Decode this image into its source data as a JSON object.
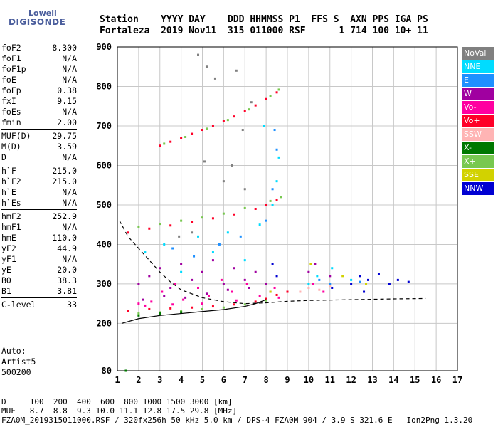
{
  "logo": {
    "line1": "Lowell",
    "line2": "DIGISONDE"
  },
  "header": {
    "line1": "Station    YYYY DAY    DDD HHMMSS P1  FFS S  AXN PPS IGA PS",
    "line2": "Fortaleza  2019 Nov11  315 011000 RSF      1 714 100 10+ 11"
  },
  "params": [
    {
      "name": "foF2",
      "value": "8.300"
    },
    {
      "name": "foF1",
      "value": "N/A"
    },
    {
      "name": "foF1p",
      "value": "N/A"
    },
    {
      "name": "foE",
      "value": "N/A"
    },
    {
      "name": "foEp",
      "value": "0.38"
    },
    {
      "name": "fxI",
      "value": "9.15"
    },
    {
      "name": "foEs",
      "value": "N/A"
    },
    {
      "name": "fmin",
      "value": "2.00"
    },
    {
      "sep": true
    },
    {
      "name": "MUF(D)",
      "value": "29.75"
    },
    {
      "name": "M(D)",
      "value": "3.59"
    },
    {
      "name": "D",
      "value": "N/A"
    },
    {
      "sep": true
    },
    {
      "name": "h`F",
      "value": "215.0"
    },
    {
      "name": "h`F2",
      "value": "215.0"
    },
    {
      "name": "h`E",
      "value": "N/A"
    },
    {
      "name": "h`Es",
      "value": "N/A"
    },
    {
      "sep": true
    },
    {
      "name": "hmF2",
      "value": "252.9"
    },
    {
      "name": "hmF1",
      "value": "N/A"
    },
    {
      "name": "hmE",
      "value": "110.0"
    },
    {
      "name": "yF2",
      "value": "44.9"
    },
    {
      "name": "yF1",
      "value": "N/A"
    },
    {
      "name": "yE",
      "value": "20.0"
    },
    {
      "name": "B0",
      "value": "38.3"
    },
    {
      "name": "B1",
      "value": "3.81"
    },
    {
      "sep": true
    },
    {
      "name": "C-level",
      "value": "33"
    }
  ],
  "auto": {
    "line1": "Auto:",
    "line2": "Artist5",
    "line3": "500200"
  },
  "legend": [
    {
      "label": "NoVal",
      "color": "#808080"
    },
    {
      "label": "NNE",
      "color": "#00dcff"
    },
    {
      "label": "E",
      "color": "#1e90ff"
    },
    {
      "label": "W",
      "color": "#a000a0"
    },
    {
      "label": "Vo-",
      "color": "#ff00a0"
    },
    {
      "label": "Vo+",
      "color": "#ff0028"
    },
    {
      "label": "SSW",
      "color": "#ffb4b4"
    },
    {
      "label": "X-",
      "color": "#007800"
    },
    {
      "label": "X+",
      "color": "#78c850"
    },
    {
      "label": "SSE",
      "color": "#d2d200"
    },
    {
      "label": "NNW",
      "color": "#0000d2"
    }
  ],
  "bottom": {
    "line1": "D     100  200  400  600  800 1000 1500 3000 [km]",
    "line2": "MUF   8.7  8.8  9.3 10.0 11.1 12.8 17.5 29.8 [MHz]",
    "line3": "FZA0M_2019315011000.RSF / 320fx256h 50 kHz 5.0 km / DPS-4 FZA0M 904 / 3.9 S 321.6 E   Ion2Png 1.3.20"
  },
  "chart_data": {
    "type": "scatter",
    "xlabel": "",
    "ylabel": "",
    "xlim": [
      1,
      17
    ],
    "ylim": [
      80,
      900
    ],
    "x_ticks": [
      1,
      2,
      3,
      4,
      5,
      6,
      7,
      8,
      9,
      10,
      11,
      12,
      13,
      14,
      15,
      16,
      17
    ],
    "y_ticks": [
      80,
      200,
      300,
      400,
      500,
      600,
      700,
      800,
      900
    ],
    "grid": true,
    "series": [
      {
        "name": "Vo+",
        "color": "#ff0028",
        "values": [
          [
            3.0,
            650
          ],
          [
            3.5,
            660
          ],
          [
            4.0,
            670
          ],
          [
            4.5,
            680
          ],
          [
            5.0,
            690
          ],
          [
            5.5,
            700
          ],
          [
            6.0,
            712
          ],
          [
            6.5,
            724
          ],
          [
            7.0,
            738
          ],
          [
            7.5,
            752
          ],
          [
            8.0,
            768
          ],
          [
            8.5,
            785
          ],
          [
            1.5,
            430
          ],
          [
            2.5,
            440
          ],
          [
            3.5,
            448
          ],
          [
            4.5,
            457
          ],
          [
            5.5,
            466
          ],
          [
            6.5,
            476
          ],
          [
            7.5,
            490
          ],
          [
            8.0,
            500
          ],
          [
            8.5,
            512
          ],
          [
            1.5,
            232
          ],
          [
            2.5,
            236
          ],
          [
            3.5,
            238
          ],
          [
            4.5,
            240
          ],
          [
            5.5,
            243
          ],
          [
            6.5,
            248
          ],
          [
            7.5,
            255
          ],
          [
            8.0,
            262
          ],
          [
            8.5,
            272
          ],
          [
            9.0,
            280
          ]
        ]
      },
      {
        "name": "X+",
        "color": "#78c850",
        "values": [
          [
            3.2,
            655
          ],
          [
            4.2,
            672
          ],
          [
            5.2,
            693
          ],
          [
            6.2,
            715
          ],
          [
            7.2,
            742
          ],
          [
            8.2,
            775
          ],
          [
            8.6,
            792
          ],
          [
            2.0,
            445
          ],
          [
            3.0,
            452
          ],
          [
            4.0,
            460
          ],
          [
            5.0,
            468
          ],
          [
            6.0,
            478
          ],
          [
            7.0,
            492
          ],
          [
            8.2,
            510
          ],
          [
            8.7,
            520
          ],
          [
            2.0,
            225
          ],
          [
            3.0,
            228
          ],
          [
            4.0,
            232
          ],
          [
            5.0,
            236
          ],
          [
            6.0,
            240
          ],
          [
            7.0,
            248
          ],
          [
            8.0,
            258
          ]
        ]
      },
      {
        "name": "W",
        "color": "#a000a0",
        "values": [
          [
            2.0,
            300
          ],
          [
            2.5,
            320
          ],
          [
            3.0,
            340
          ],
          [
            3.5,
            290
          ],
          [
            4.0,
            350
          ],
          [
            4.5,
            310
          ],
          [
            5.0,
            330
          ],
          [
            5.5,
            360
          ],
          [
            6.0,
            300
          ],
          [
            6.5,
            340
          ],
          [
            7.0,
            310
          ],
          [
            7.5,
            330
          ],
          [
            8.0,
            300
          ],
          [
            2.2,
            260
          ],
          [
            3.2,
            270
          ],
          [
            4.2,
            265
          ],
          [
            5.2,
            275
          ],
          [
            6.2,
            285
          ],
          [
            7.2,
            290
          ],
          [
            8.2,
            280
          ],
          [
            10.0,
            330
          ],
          [
            10.3,
            350
          ],
          [
            11.0,
            320
          ]
        ]
      },
      {
        "name": "Vo-",
        "color": "#ff00a0",
        "values": [
          [
            2.0,
            250
          ],
          [
            2.6,
            255
          ],
          [
            3.1,
            280
          ],
          [
            3.7,
            300
          ],
          [
            4.1,
            260
          ],
          [
            4.8,
            290
          ],
          [
            5.3,
            270
          ],
          [
            5.9,
            310
          ],
          [
            6.4,
            280
          ],
          [
            7.1,
            300
          ],
          [
            7.7,
            270
          ],
          [
            8.4,
            290
          ],
          [
            2.3,
            245
          ],
          [
            3.6,
            248
          ],
          [
            5.0,
            250
          ],
          [
            6.6,
            258
          ],
          [
            8.6,
            265
          ],
          [
            10.2,
            300
          ],
          [
            10.7,
            280
          ]
        ]
      },
      {
        "name": "NNE",
        "color": "#00dcff",
        "values": [
          [
            2.3,
            380
          ],
          [
            3.2,
            400
          ],
          [
            4.0,
            330
          ],
          [
            4.8,
            420
          ],
          [
            5.5,
            380
          ],
          [
            6.2,
            430
          ],
          [
            7.0,
            360
          ],
          [
            7.7,
            450
          ],
          [
            8.3,
            500
          ],
          [
            8.5,
            560
          ],
          [
            8.6,
            620
          ],
          [
            7.9,
            700
          ],
          [
            10.0,
            300
          ],
          [
            10.4,
            320
          ],
          [
            11.1,
            340
          ],
          [
            12.0,
            310
          ]
        ]
      },
      {
        "name": "E",
        "color": "#1e90ff",
        "values": [
          [
            3.6,
            390
          ],
          [
            4.6,
            370
          ],
          [
            5.8,
            400
          ],
          [
            6.8,
            420
          ],
          [
            8.0,
            460
          ],
          [
            8.3,
            540
          ],
          [
            8.5,
            640
          ],
          [
            8.4,
            690
          ],
          [
            10.5,
            310
          ],
          [
            11.0,
            300
          ],
          [
            12.4,
            305
          ]
        ]
      },
      {
        "name": "SSW",
        "color": "#ffb4b4",
        "values": [
          [
            10.0,
            290
          ],
          [
            10.5,
            285
          ],
          [
            11.0,
            295
          ],
          [
            9.6,
            280
          ]
        ]
      },
      {
        "name": "X-",
        "color": "#007800",
        "values": [
          [
            2.0,
            220
          ],
          [
            3.0,
            225
          ],
          [
            4.0,
            228
          ],
          [
            1.4,
            80
          ]
        ]
      },
      {
        "name": "SSE",
        "color": "#d2d200",
        "values": [
          [
            8.2,
            280
          ],
          [
            10.1,
            350
          ],
          [
            12.7,
            300
          ],
          [
            11.6,
            320
          ]
        ]
      },
      {
        "name": "NNW",
        "color": "#0000d2",
        "values": [
          [
            12.0,
            300
          ],
          [
            12.4,
            320
          ],
          [
            12.8,
            310
          ],
          [
            13.3,
            325
          ],
          [
            13.8,
            300
          ],
          [
            14.2,
            310
          ],
          [
            14.7,
            305
          ],
          [
            11.1,
            290
          ],
          [
            12.6,
            280
          ],
          [
            8.5,
            320
          ],
          [
            8.3,
            350
          ]
        ]
      },
      {
        "name": "NoVal",
        "color": "#808080",
        "values": [
          [
            4.5,
            430
          ],
          [
            5.2,
            850
          ],
          [
            4.8,
            880
          ],
          [
            5.6,
            820
          ],
          [
            6.6,
            840
          ],
          [
            7.3,
            760
          ],
          [
            6.0,
            560
          ],
          [
            7.0,
            540
          ],
          [
            6.4,
            600
          ],
          [
            5.1,
            610
          ],
          [
            3.9,
            420
          ],
          [
            6.9,
            690
          ]
        ]
      }
    ],
    "curves": [
      {
        "style": "solid",
        "color": "#000000",
        "points": [
          [
            1.2,
            200
          ],
          [
            2,
            212
          ],
          [
            3,
            220
          ],
          [
            4,
            225
          ],
          [
            5,
            230
          ],
          [
            6,
            235
          ],
          [
            7,
            243
          ],
          [
            7.5,
            250
          ],
          [
            8,
            260
          ]
        ]
      },
      {
        "style": "dashed",
        "color": "#000000",
        "points": [
          [
            1.1,
            460
          ],
          [
            1.5,
            420
          ],
          [
            2,
            390
          ],
          [
            2.5,
            360
          ],
          [
            3,
            330
          ],
          [
            3.5,
            305
          ],
          [
            4,
            285
          ],
          [
            5,
            265
          ],
          [
            6,
            255
          ],
          [
            7,
            250
          ],
          [
            8,
            252
          ],
          [
            9,
            256
          ],
          [
            10,
            258
          ],
          [
            12,
            260
          ],
          [
            14,
            262
          ],
          [
            15.5,
            263
          ]
        ]
      }
    ]
  }
}
